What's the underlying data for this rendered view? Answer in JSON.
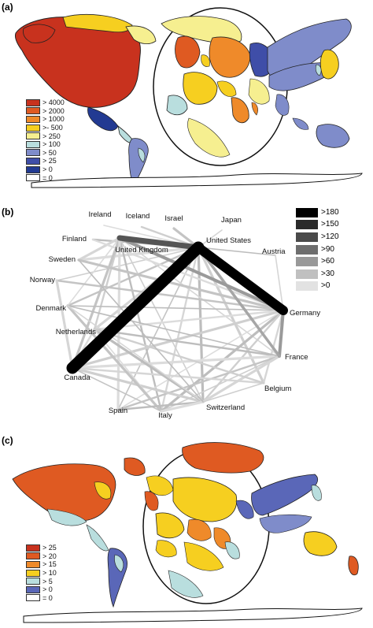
{
  "panels": {
    "a": {
      "label": "(a)"
    },
    "b": {
      "label": "(b)"
    },
    "c": {
      "label": "(c)"
    }
  },
  "legend_a": {
    "items": [
      {
        "text": "> 4000",
        "color": "#c8321e"
      },
      {
        "text": "> 2000",
        "color": "#df5a22"
      },
      {
        "text": "> 1000",
        "color": "#ef8a2a"
      },
      {
        "text": ">- 500",
        "color": "#f6cf20"
      },
      {
        "text": "> 250",
        "color": "#f6ef90"
      },
      {
        "text": "> 100",
        "color": "#b9dede"
      },
      {
        "text": ">  50",
        "color": "#7f8cca"
      },
      {
        "text": ">  25",
        "color": "#3f4ea8"
      },
      {
        "text": ">  0",
        "color": "#223a92"
      },
      {
        "text": "=  0",
        "color": "#ffffff"
      }
    ]
  },
  "legend_b": {
    "items": [
      {
        "text": ">180",
        "color": "#000000"
      },
      {
        "text": ">150",
        "color": "#2a2a2a"
      },
      {
        "text": ">120",
        "color": "#4a4a4a"
      },
      {
        "text": ">90",
        "color": "#6e6e6e"
      },
      {
        "text": ">60",
        "color": "#999999"
      },
      {
        "text": ">30",
        "color": "#c0c0c0"
      },
      {
        "text": ">0",
        "color": "#e2e2e2"
      }
    ]
  },
  "legend_c": {
    "items": [
      {
        "text": "> 25",
        "color": "#c8321e"
      },
      {
        "text": "> 20",
        "color": "#df5a22"
      },
      {
        "text": "> 15",
        "color": "#ef8a2a"
      },
      {
        "text": "> 10",
        "color": "#f6cf20"
      },
      {
        "text": ">  5",
        "color": "#b9dede"
      },
      {
        "text": ">  0",
        "color": "#5a67b8"
      },
      {
        "text": "=  0",
        "color": "#ffffff"
      }
    ]
  },
  "network": {
    "nodes": [
      {
        "id": "ireland",
        "label": "Ireland"
      },
      {
        "id": "iceland",
        "label": "Iceland"
      },
      {
        "id": "israel",
        "label": "Israel"
      },
      {
        "id": "japan",
        "label": "Japan"
      },
      {
        "id": "finland",
        "label": "Finland"
      },
      {
        "id": "uk",
        "label": "United Kingdom"
      },
      {
        "id": "us",
        "label": "United States"
      },
      {
        "id": "austria",
        "label": "Austria"
      },
      {
        "id": "sweden",
        "label": "Sweden"
      },
      {
        "id": "norway",
        "label": "Norway"
      },
      {
        "id": "denmark",
        "label": "Denmark"
      },
      {
        "id": "netherlands",
        "label": "Netherlands"
      },
      {
        "id": "germany",
        "label": "Germany"
      },
      {
        "id": "france",
        "label": "France"
      },
      {
        "id": "canada",
        "label": "Canada"
      },
      {
        "id": "belgium",
        "label": "Belgium"
      },
      {
        "id": "spain",
        "label": "Spain"
      },
      {
        "id": "italy",
        "label": "Italy"
      },
      {
        "id": "switzerland",
        "label": "Switzerland"
      }
    ]
  }
}
